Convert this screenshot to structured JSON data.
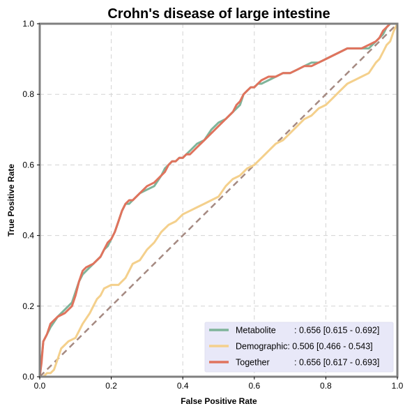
{
  "chart_data": {
    "type": "line",
    "title": "Crohn's disease of large intestine",
    "xlabel": "False Positive Rate",
    "ylabel": "True Positive Rate",
    "xlim": [
      0,
      1
    ],
    "ylim": [
      0,
      1
    ],
    "xticks": [
      "0.0",
      "0.2",
      "0.4",
      "0.6",
      "0.8",
      "1.0"
    ],
    "yticks": [
      "0.0",
      "0.2",
      "0.4",
      "0.6",
      "0.8",
      "1.0"
    ],
    "grid": true,
    "legend_position": "lower-right",
    "diagonal": {
      "x": [
        0,
        1
      ],
      "y": [
        0,
        1
      ],
      "color": "#a58a82",
      "style": "dashed"
    },
    "series": [
      {
        "name": "Metabolite",
        "auc_text": ": 0.656 [0.615 - 0.692]",
        "color": "#7fb49a",
        "x": [
          0,
          0.005,
          0.01,
          0.02,
          0.03,
          0.05,
          0.07,
          0.09,
          0.1,
          0.11,
          0.12,
          0.13,
          0.15,
          0.17,
          0.18,
          0.19,
          0.2,
          0.21,
          0.22,
          0.23,
          0.24,
          0.25,
          0.26,
          0.28,
          0.3,
          0.32,
          0.34,
          0.35,
          0.36,
          0.37,
          0.38,
          0.39,
          0.4,
          0.41,
          0.42,
          0.44,
          0.46,
          0.48,
          0.5,
          0.52,
          0.54,
          0.55,
          0.56,
          0.57,
          0.58,
          0.59,
          0.6,
          0.61,
          0.62,
          0.64,
          0.66,
          0.68,
          0.7,
          0.72,
          0.74,
          0.76,
          0.78,
          0.8,
          0.82,
          0.84,
          0.86,
          0.88,
          0.9,
          0.92,
          0.94,
          0.96,
          0.97,
          0.98,
          0.99,
          1.0
        ],
        "y": [
          0,
          0.05,
          0.1,
          0.12,
          0.14,
          0.17,
          0.19,
          0.21,
          0.24,
          0.27,
          0.29,
          0.3,
          0.32,
          0.34,
          0.36,
          0.37,
          0.39,
          0.41,
          0.44,
          0.47,
          0.49,
          0.49,
          0.5,
          0.52,
          0.53,
          0.54,
          0.57,
          0.59,
          0.6,
          0.61,
          0.61,
          0.62,
          0.62,
          0.63,
          0.64,
          0.66,
          0.67,
          0.7,
          0.72,
          0.73,
          0.75,
          0.76,
          0.77,
          0.8,
          0.81,
          0.82,
          0.82,
          0.83,
          0.83,
          0.84,
          0.85,
          0.86,
          0.86,
          0.87,
          0.88,
          0.89,
          0.89,
          0.9,
          0.91,
          0.92,
          0.93,
          0.93,
          0.93,
          0.93,
          0.95,
          0.97,
          0.99,
          1.0,
          1.0,
          1.0
        ]
      },
      {
        "name": "Demographic",
        "auc_text": ": 0.506 [0.466 - 0.543]",
        "color": "#f4d08c",
        "x": [
          0,
          0.01,
          0.02,
          0.03,
          0.04,
          0.05,
          0.06,
          0.07,
          0.08,
          0.1,
          0.12,
          0.14,
          0.15,
          0.16,
          0.17,
          0.18,
          0.2,
          0.22,
          0.24,
          0.26,
          0.28,
          0.3,
          0.32,
          0.34,
          0.36,
          0.38,
          0.4,
          0.42,
          0.44,
          0.46,
          0.48,
          0.5,
          0.52,
          0.54,
          0.56,
          0.58,
          0.6,
          0.62,
          0.64,
          0.66,
          0.68,
          0.7,
          0.72,
          0.74,
          0.76,
          0.78,
          0.8,
          0.82,
          0.84,
          0.86,
          0.88,
          0.9,
          0.92,
          0.94,
          0.95,
          0.96,
          0.97,
          0.98,
          0.99,
          1.0
        ],
        "y": [
          0,
          0.0,
          0.01,
          0.01,
          0.02,
          0.05,
          0.08,
          0.09,
          0.1,
          0.11,
          0.15,
          0.18,
          0.2,
          0.22,
          0.23,
          0.25,
          0.26,
          0.26,
          0.28,
          0.32,
          0.33,
          0.36,
          0.38,
          0.41,
          0.43,
          0.44,
          0.46,
          0.47,
          0.48,
          0.49,
          0.5,
          0.51,
          0.54,
          0.56,
          0.57,
          0.59,
          0.6,
          0.62,
          0.64,
          0.66,
          0.67,
          0.69,
          0.71,
          0.73,
          0.74,
          0.76,
          0.77,
          0.79,
          0.81,
          0.83,
          0.84,
          0.85,
          0.86,
          0.89,
          0.9,
          0.92,
          0.94,
          0.95,
          0.98,
          1.0
        ]
      },
      {
        "name": "Together",
        "auc_text": ": 0.656 [0.617 - 0.693]",
        "color": "#e0735d",
        "x": [
          0,
          0.005,
          0.01,
          0.02,
          0.03,
          0.05,
          0.07,
          0.09,
          0.1,
          0.11,
          0.12,
          0.13,
          0.15,
          0.17,
          0.18,
          0.19,
          0.2,
          0.21,
          0.22,
          0.23,
          0.24,
          0.25,
          0.26,
          0.28,
          0.3,
          0.32,
          0.34,
          0.35,
          0.36,
          0.37,
          0.38,
          0.39,
          0.4,
          0.41,
          0.42,
          0.44,
          0.46,
          0.48,
          0.5,
          0.52,
          0.54,
          0.55,
          0.56,
          0.57,
          0.58,
          0.59,
          0.6,
          0.61,
          0.62,
          0.64,
          0.66,
          0.68,
          0.7,
          0.72,
          0.74,
          0.76,
          0.78,
          0.8,
          0.82,
          0.84,
          0.86,
          0.88,
          0.9,
          0.92,
          0.94,
          0.95,
          0.96,
          0.97,
          0.98,
          0.99,
          1.0
        ],
        "y": [
          0,
          0.04,
          0.1,
          0.12,
          0.15,
          0.17,
          0.18,
          0.2,
          0.23,
          0.27,
          0.3,
          0.31,
          0.32,
          0.34,
          0.36,
          0.38,
          0.39,
          0.41,
          0.44,
          0.47,
          0.49,
          0.5,
          0.5,
          0.52,
          0.54,
          0.55,
          0.57,
          0.58,
          0.6,
          0.61,
          0.61,
          0.62,
          0.62,
          0.63,
          0.63,
          0.65,
          0.67,
          0.69,
          0.71,
          0.73,
          0.75,
          0.77,
          0.78,
          0.8,
          0.81,
          0.82,
          0.82,
          0.83,
          0.84,
          0.85,
          0.85,
          0.86,
          0.86,
          0.87,
          0.88,
          0.88,
          0.89,
          0.9,
          0.91,
          0.92,
          0.93,
          0.93,
          0.93,
          0.94,
          0.95,
          0.96,
          0.98,
          0.99,
          1.0,
          1.0,
          1.0
        ]
      }
    ]
  }
}
